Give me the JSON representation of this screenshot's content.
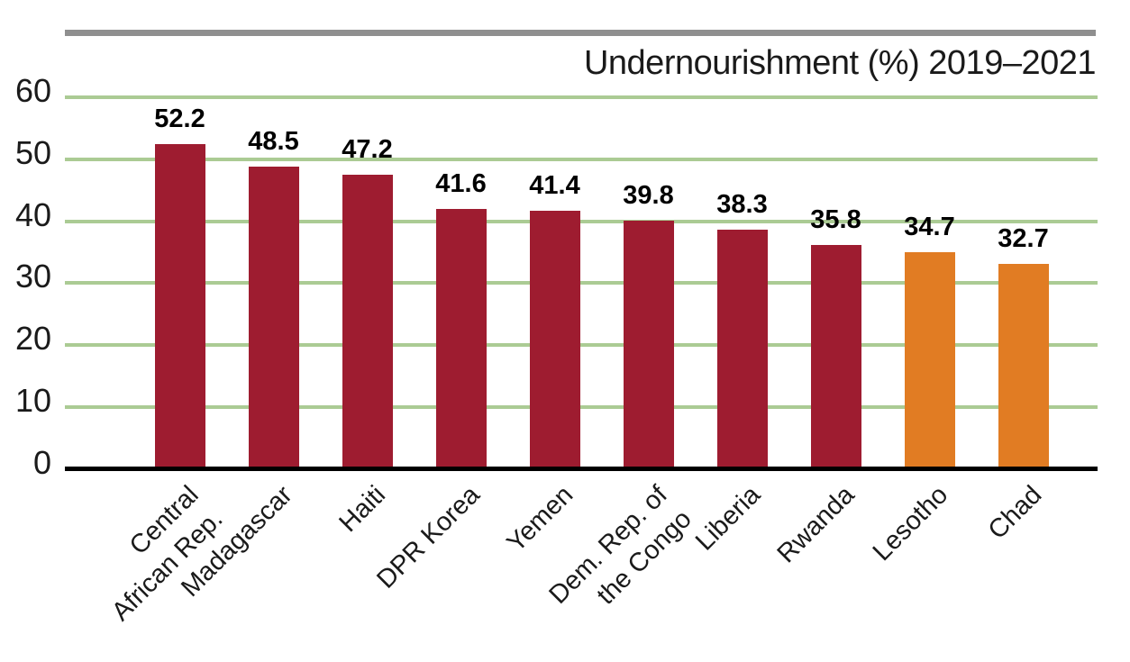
{
  "chart_data": {
    "type": "bar",
    "title": "Undernourishment (%) 2019–2021",
    "categories": [
      "Central\nAfrican Rep.",
      "Madagascar",
      "Haiti",
      "DPR Korea",
      "Yemen",
      "Dem. Rep. of\nthe Congo",
      "Liberia",
      "Rwanda",
      "Lesotho",
      "Chad"
    ],
    "values": [
      52.2,
      48.5,
      47.2,
      41.6,
      41.4,
      39.8,
      38.3,
      35.8,
      34.7,
      32.7
    ],
    "value_labels": [
      "52.2",
      "48.5",
      "47.2",
      "41.6",
      "41.4",
      "39.8",
      "38.3",
      "35.8",
      "34.7",
      "32.7"
    ],
    "bar_colors": [
      "#9E1C30",
      "#9E1C30",
      "#9E1C30",
      "#9E1C30",
      "#9E1C30",
      "#9E1C30",
      "#9E1C30",
      "#9E1C30",
      "#E17C23",
      "#E17C23"
    ],
    "xlabel": "",
    "ylabel": "",
    "ylim": [
      0,
      60
    ],
    "yticks": [
      0,
      10,
      20,
      30,
      40,
      50,
      60
    ],
    "grid": true,
    "legend_position": "none"
  },
  "colors": {
    "bar_default": "#9E1C30",
    "bar_highlight": "#E17C23",
    "gridline": "#ABCB94",
    "axis_line": "#000000",
    "top_rule": "#8F8F8F",
    "text": "#1a1a1a"
  }
}
